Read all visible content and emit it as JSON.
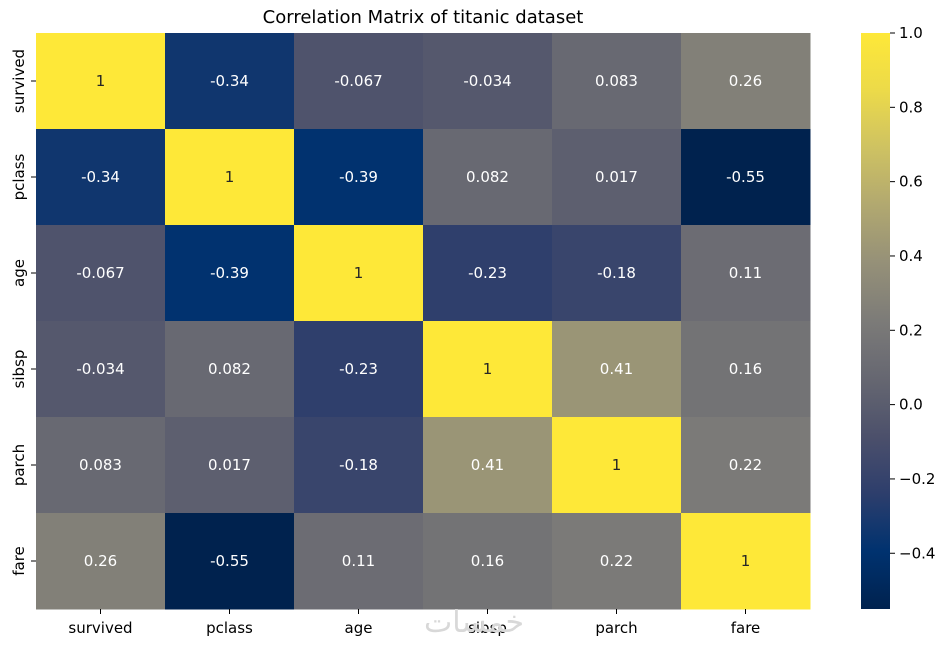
{
  "chart_data": {
    "type": "heatmap",
    "title": "Correlation Matrix of titanic dataset",
    "x_categories": [
      "survived",
      "pclass",
      "age",
      "sibsp",
      "parch",
      "fare"
    ],
    "y_categories": [
      "survived",
      "pclass",
      "age",
      "sibsp",
      "parch",
      "fare"
    ],
    "values": [
      [
        1,
        -0.34,
        -0.067,
        -0.034,
        0.083,
        0.26
      ],
      [
        -0.34,
        1,
        -0.39,
        0.082,
        0.017,
        -0.55
      ],
      [
        -0.067,
        -0.39,
        1,
        -0.23,
        -0.18,
        0.11
      ],
      [
        -0.034,
        0.082,
        -0.23,
        1,
        0.41,
        0.16
      ],
      [
        0.083,
        0.017,
        -0.18,
        0.41,
        1,
        0.22
      ],
      [
        0.26,
        -0.55,
        0.11,
        0.16,
        0.22,
        1
      ]
    ],
    "annotations": [
      [
        "1",
        "-0.34",
        "-0.067",
        "-0.034",
        "0.083",
        "0.26"
      ],
      [
        "-0.34",
        "1",
        "-0.39",
        "0.082",
        "0.017",
        "-0.55"
      ],
      [
        "-0.067",
        "-0.39",
        "1",
        "-0.23",
        "-0.18",
        "0.11"
      ],
      [
        "-0.034",
        "0.082",
        "-0.23",
        "1",
        "0.41",
        "0.16"
      ],
      [
        "0.083",
        "0.017",
        "-0.18",
        "0.41",
        "1",
        "0.22"
      ],
      [
        "0.26",
        "-0.55",
        "0.11",
        "0.16",
        "0.22",
        "1"
      ]
    ],
    "colormap": "cividis",
    "colorbar": {
      "range": [
        -0.55,
        1.0
      ],
      "ticks": [
        1.0,
        0.8,
        0.6,
        0.4,
        0.2,
        0.0,
        -0.2,
        -0.4
      ],
      "tick_labels": [
        "1.0",
        "0.8",
        "0.6",
        "0.4",
        "0.2",
        "0.0",
        "−0.2",
        "−0.4"
      ]
    },
    "grid": false,
    "legend": "colorbar-right"
  },
  "watermark": "خمسات"
}
